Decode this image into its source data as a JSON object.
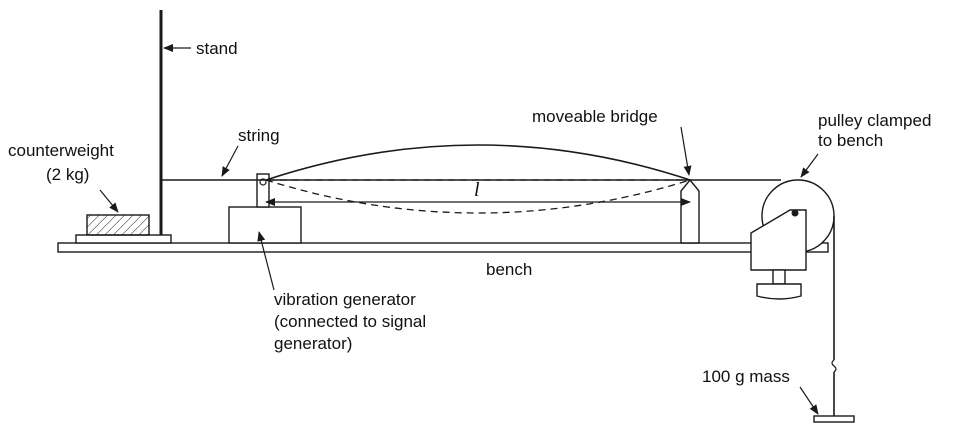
{
  "labels": {
    "stand": "stand",
    "string": "string",
    "counterweight_line1": "counterweight",
    "counterweight_line2": "(2 kg)",
    "moveable_bridge": "moveable bridge",
    "pulley_line1": "pulley clamped",
    "pulley_line2": "to bench",
    "length_symbol": "l",
    "bench": "bench",
    "vibration_line1": "vibration generator",
    "vibration_line2": "(connected to signal",
    "vibration_line3": "generator)",
    "mass": "100 g mass"
  },
  "colors": {
    "line": "#1a1a1a",
    "background": "#ffffff"
  }
}
